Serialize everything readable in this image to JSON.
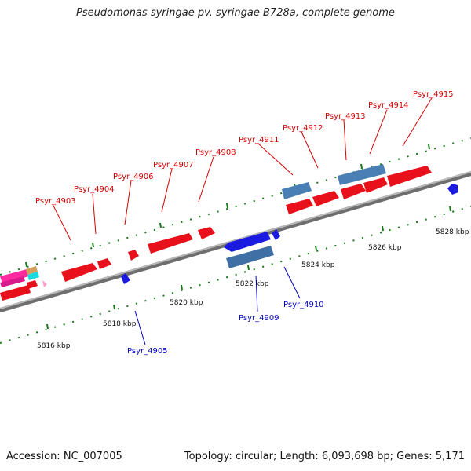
{
  "header": {
    "title": "Pseudomonas syringae pv. syringae B728a, complete genome"
  },
  "footer": {
    "accession": "Accession: NC_007005",
    "summary": "Topology: circular; Length: 6,093,698 bp; Genes: 5,171"
  },
  "colors": {
    "forward_cds": "#e8101a",
    "reverse_cds": "#1a1ae0",
    "forward_other": "#4a7fb5",
    "reverse_other": "#3f6fa5",
    "label_forward": "#d40000",
    "label_reverse": "#0000c0",
    "ruler": "#8a8a8a",
    "ticks": "#1a7a1a"
  },
  "ruler": {
    "ticks": [
      "5816 kbp",
      "5818 kbp",
      "5820 kbp",
      "5822 kbp",
      "5824 kbp",
      "5826 kbp",
      "5828 kbp"
    ]
  },
  "genes": {
    "forward_labels": [
      "Psyr_4903",
      "Psyr_4904",
      "Psyr_4906",
      "Psyr_4907",
      "Psyr_4908",
      "Psyr_4911",
      "Psyr_4912",
      "Psyr_4913",
      "Psyr_4914",
      "Psyr_4915"
    ],
    "reverse_labels": [
      "Psyr_4905",
      "Psyr_4909",
      "Psyr_4910"
    ]
  }
}
